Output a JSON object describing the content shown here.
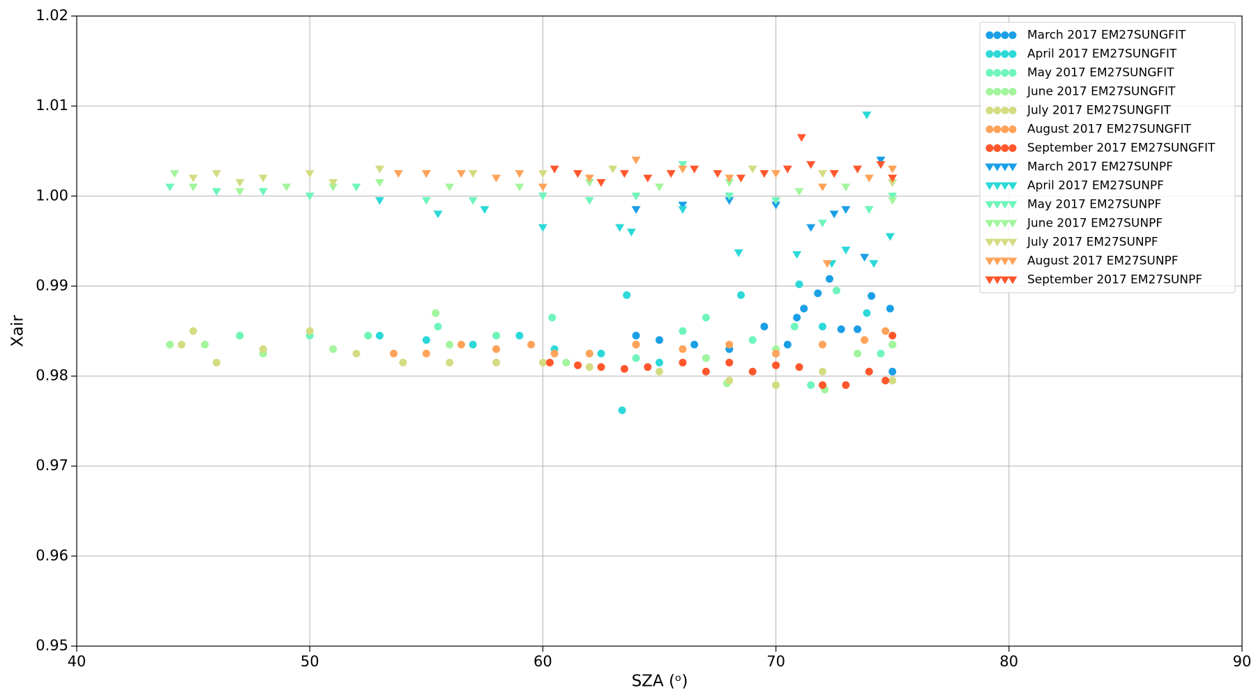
{
  "chart_data": {
    "type": "scatter",
    "xlabel": "SZA (ᵒ)",
    "ylabel": "Xair",
    "xlim": [
      40,
      90
    ],
    "xticks": [
      40,
      50,
      60,
      70,
      80,
      90
    ],
    "ylim": [
      0.95,
      1.02
    ],
    "yticks": [
      0.95,
      0.96,
      0.97,
      0.98,
      0.99,
      {
        "value": 1.0,
        "label": "1.00"
      },
      1.01,
      1.02
    ],
    "grid": true,
    "legend": "upper right",
    "series": [
      {
        "name": "March 2017 EM27SUNGFIT",
        "color": "#1a9fe6",
        "marker": "o",
        "x": [
          64,
          65,
          66.5,
          68,
          69.5,
          70.5,
          71.2,
          71.8,
          72.3,
          72.8,
          73.5,
          74.1,
          74.9,
          75,
          70.9
        ],
        "values": [
          0.9845,
          0.984,
          0.9835,
          0.983,
          0.9855,
          0.9835,
          0.9875,
          0.9892,
          0.9908,
          0.9852,
          0.9852,
          0.9889,
          0.9875,
          0.9805,
          0.9865
        ]
      },
      {
        "name": "April 2017 EM27SUNGFIT",
        "color": "#2cd8d8",
        "marker": "o",
        "x": [
          53,
          55,
          57,
          59,
          60.5,
          62.5,
          63.4,
          63.6,
          65,
          67,
          68.5,
          70,
          71,
          72,
          73.9,
          75
        ],
        "values": [
          0.9845,
          0.984,
          0.9835,
          0.9845,
          0.983,
          0.9825,
          0.9762,
          0.989,
          0.9815,
          0.982,
          0.989,
          0.9825,
          0.9902,
          0.9855,
          0.987,
          0.9835
        ]
      },
      {
        "name": "May 2017 EM27SUNGFIT",
        "color": "#6ef5bb",
        "marker": "o",
        "x": [
          47,
          50,
          52.5,
          55.5,
          58,
          60.4,
          62,
          64,
          66,
          67,
          69,
          70.8,
          72.6,
          74.5,
          71.5
        ],
        "values": [
          0.9845,
          0.9845,
          0.9845,
          0.9855,
          0.9845,
          0.9865,
          0.9825,
          0.982,
          0.985,
          0.9865,
          0.984,
          0.9855,
          0.9895,
          0.9825,
          0.979
        ]
      },
      {
        "name": "June 2017 EM27SUNGFIT",
        "color": "#a2f59c",
        "marker": "o",
        "x": [
          44,
          45.5,
          48,
          51,
          55.4,
          56,
          58,
          61,
          64,
          67,
          67.9,
          70,
          72.1,
          73.5,
          75
        ],
        "values": [
          0.9835,
          0.9835,
          0.9825,
          0.983,
          0.987,
          0.9835,
          0.983,
          0.9815,
          0.9835,
          0.982,
          0.9792,
          0.983,
          0.9785,
          0.9825,
          0.9835
        ]
      },
      {
        "name": "July 2017 EM27SUNGFIT",
        "color": "#d4dc82",
        "marker": "o",
        "x": [
          44.5,
          45,
          46,
          48,
          50,
          52,
          54,
          56,
          58,
          60,
          62,
          65,
          68,
          70,
          72,
          75
        ],
        "values": [
          0.9835,
          0.985,
          0.9815,
          0.983,
          0.985,
          0.9825,
          0.9815,
          0.9815,
          0.9815,
          0.9815,
          0.981,
          0.9805,
          0.9795,
          0.979,
          0.9805,
          0.9795
        ]
      },
      {
        "name": "August 2017 EM27SUNGFIT",
        "color": "#ffa35a",
        "marker": "o",
        "x": [
          53.6,
          55,
          56.5,
          58,
          59.5,
          60.5,
          62,
          64,
          66,
          68,
          70,
          72,
          73.8,
          74.7
        ],
        "values": [
          0.9825,
          0.9825,
          0.9835,
          0.983,
          0.9835,
          0.9825,
          0.9825,
          0.9835,
          0.983,
          0.9835,
          0.9825,
          0.9835,
          0.984,
          0.985
        ]
      },
      {
        "name": "September 2017 EM27SUNGFIT",
        "color": "#ff562c",
        "marker": "o",
        "x": [
          60.3,
          61.5,
          62.5,
          63.5,
          64.5,
          66,
          67,
          68,
          69,
          70,
          71,
          72,
          73,
          74,
          74.7,
          75
        ],
        "values": [
          0.9815,
          0.9812,
          0.981,
          0.9808,
          0.981,
          0.9815,
          0.9805,
          0.9815,
          0.9805,
          0.9812,
          0.981,
          0.979,
          0.979,
          0.9805,
          0.9795,
          0.9845
        ]
      },
      {
        "name": "March 2017 EM27SUNPF",
        "color": "#1a9fe6",
        "marker": "v",
        "x": [
          64,
          66,
          68,
          70,
          71.5,
          72.5,
          73,
          74.5,
          75,
          73.8
        ],
        "values": [
          0.9985,
          0.999,
          0.9995,
          0.999,
          0.9965,
          0.998,
          0.9985,
          1.004,
          1.0015,
          0.9932
        ]
      },
      {
        "name": "April 2017 EM27SUNPF",
        "color": "#2cd8d8",
        "marker": "v",
        "x": [
          53,
          55.5,
          57.5,
          60,
          63.3,
          63.8,
          66,
          68.4,
          70.9,
          72.4,
          73,
          74.2,
          74.9,
          73.9
        ],
        "values": [
          0.9995,
          0.998,
          0.9985,
          0.9965,
          0.9965,
          0.996,
          0.9985,
          0.9937,
          0.9935,
          0.9925,
          0.994,
          0.9925,
          0.9955,
          1.009
        ]
      },
      {
        "name": "May 2017 EM27SUNPF",
        "color": "#6ef5bb",
        "marker": "v",
        "x": [
          44,
          46,
          48,
          50,
          52,
          55,
          57,
          60,
          62,
          64,
          66,
          68,
          70,
          72,
          74,
          75
        ],
        "values": [
          1.001,
          1.0005,
          1.0005,
          1.0,
          1.001,
          0.9995,
          0.9995,
          1.0,
          0.9995,
          1.0,
          1.0035,
          1.0,
          0.9995,
          0.997,
          0.9985,
          1.0
        ]
      },
      {
        "name": "June 2017 EM27SUNPF",
        "color": "#a2f59c",
        "marker": "v",
        "x": [
          44.2,
          45,
          47,
          49,
          51,
          53,
          56,
          59,
          62,
          65,
          68,
          71,
          73,
          75
        ],
        "values": [
          1.0025,
          1.001,
          1.0005,
          1.001,
          1.001,
          1.0015,
          1.001,
          1.001,
          1.0015,
          1.001,
          1.0015,
          1.0005,
          1.001,
          0.9995
        ]
      },
      {
        "name": "July 2017 EM27SUNPF",
        "color": "#d4dc82",
        "marker": "v",
        "x": [
          45,
          46,
          47,
          48,
          50,
          51,
          53,
          55,
          57,
          60,
          63,
          66,
          69,
          72,
          75
        ],
        "values": [
          1.002,
          1.0025,
          1.0015,
          1.002,
          1.0025,
          1.0015,
          1.003,
          1.0025,
          1.0025,
          1.0025,
          1.003,
          1.003,
          1.003,
          1.0025,
          1.0015
        ]
      },
      {
        "name": "August 2017 EM27SUNPF",
        "color": "#ffa35a",
        "marker": "v",
        "x": [
          53.8,
          55,
          56.5,
          58,
          59,
          60,
          62,
          64,
          66,
          68,
          70,
          72,
          72.2,
          74,
          75
        ],
        "values": [
          1.0025,
          1.0025,
          1.0025,
          1.002,
          1.0025,
          1.001,
          1.002,
          1.004,
          1.003,
          1.002,
          1.0025,
          1.001,
          0.9925,
          1.002,
          1.003
        ]
      },
      {
        "name": "September 2017 EM27SUNPF",
        "color": "#ff562c",
        "marker": "v",
        "x": [
          60.5,
          61.5,
          62.5,
          63.5,
          64.5,
          65.5,
          66.5,
          67.5,
          68.5,
          69.5,
          70.5,
          71.1,
          71.5,
          72.5,
          73.5,
          74.5,
          75
        ],
        "values": [
          1.003,
          1.0025,
          1.0015,
          1.0025,
          1.002,
          1.0025,
          1.003,
          1.0025,
          1.002,
          1.0025,
          1.003,
          1.0065,
          1.0035,
          1.0025,
          1.003,
          1.0035,
          1.002
        ]
      }
    ]
  }
}
